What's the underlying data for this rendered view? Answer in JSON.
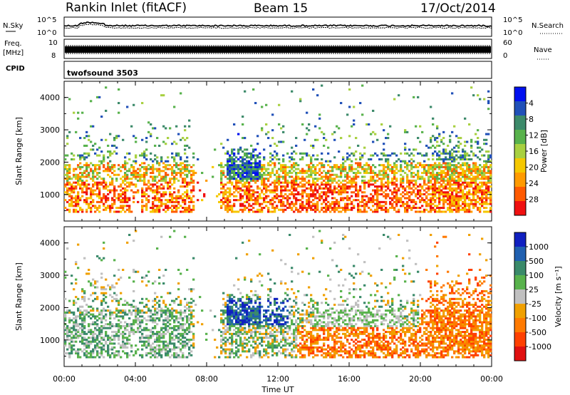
{
  "header": {
    "station": "Rankin Inlet (fitACF)",
    "beam": "Beam 15",
    "date": "17/Oct/2014"
  },
  "strip_panels": {
    "nsky_label": "N.Sky",
    "nsearch_label": "N.Search",
    "freq_label_1": "Freq.",
    "freq_label_2": "[MHz]",
    "nave_label": "Nave",
    "cpid_label": "CPID",
    "cpid_value": "twofsound 3503",
    "noise_ticks_left": [
      "10^5",
      "10^0"
    ],
    "noise_ticks_right": [
      "10^5",
      "10^0"
    ],
    "freq_ticks": [
      "10",
      "8"
    ],
    "nave_ticks": [
      "60",
      "0"
    ]
  },
  "chart_data": [
    {
      "type": "heatmap",
      "title": "",
      "xlabel": "Time UT",
      "ylabel": "Slant Range [km]",
      "xlim": [
        0,
        24
      ],
      "ylim": [
        180,
        4500
      ],
      "x_ticks": [
        "00:00",
        "04:00",
        "08:00",
        "12:00",
        "16:00",
        "20:00",
        "00:00"
      ],
      "y_ticks": [
        "1000",
        "2000",
        "3000",
        "4000"
      ],
      "colorbar": {
        "label": "Power [dB]",
        "ticks": [
          "4",
          "8",
          "12",
          "16",
          "20",
          "24",
          "28"
        ],
        "colors": [
          "#0010f0",
          "#2050b8",
          "#3c8a6a",
          "#58b24c",
          "#a8d040",
          "#f5c800",
          "#ff9a00",
          "#ff5a00",
          "#f01010"
        ]
      }
    },
    {
      "type": "heatmap",
      "title": "",
      "xlabel": "Time UT",
      "ylabel": "Slant Range [km]",
      "xlim": [
        0,
        24
      ],
      "ylim": [
        180,
        4500
      ],
      "x_ticks": [
        "00:00",
        "04:00",
        "08:00",
        "12:00",
        "16:00",
        "20:00",
        "00:00"
      ],
      "y_ticks": [
        "1000",
        "2000",
        "3000",
        "4000"
      ],
      "colorbar": {
        "label": "Velocity [m s⁻¹]",
        "ticks": [
          "1000",
          "500",
          "100",
          "25",
          "-25",
          "-100",
          "-500",
          "-1000"
        ],
        "colors": [
          "#1020c0",
          "#2060b0",
          "#3a8a6a",
          "#58b24c",
          "#c0c0c0",
          "#f0a000",
          "#ff7a00",
          "#ff4000",
          "#e01010"
        ]
      }
    }
  ],
  "x_axis_title": "Time UT"
}
